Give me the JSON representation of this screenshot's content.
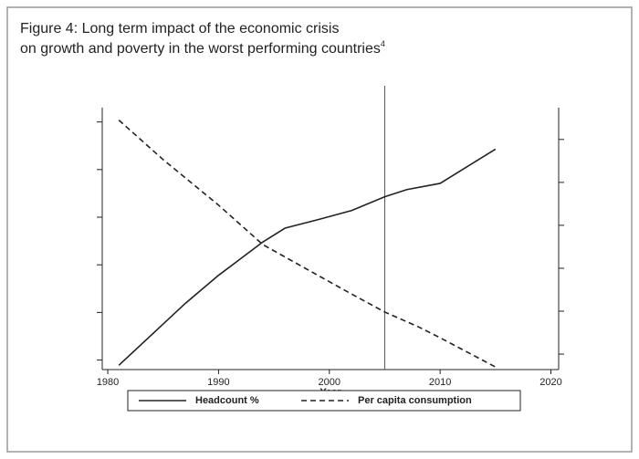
{
  "chart_data": {
    "type": "line",
    "title_lines": [
      "Figure 4: Long term impact of the economic crisis",
      "on growth and poverty in the worst performing countries"
    ],
    "footnote_mark": "4",
    "xlabel": "Year",
    "xlim": [
      1979.5,
      2020.7
    ],
    "xticks": [
      1980,
      1990,
      2000,
      2010,
      2020
    ],
    "ylim": [
      0.8,
      6.3
    ],
    "yticks": [
      1,
      2,
      3,
      4,
      5,
      6
    ],
    "y2lim": [
      0.64,
      6.74
    ],
    "y2ticks": [
      1,
      2,
      3,
      4,
      5,
      6
    ],
    "vline": 2005,
    "series": [
      {
        "name": "Headcount %",
        "color": "#222222",
        "dash": "solid",
        "x": [
          1981,
          1987,
          1990,
          1994,
          1996,
          1999,
          2002,
          2005,
          2007,
          2010,
          2015
        ],
        "values": [
          0.89,
          2.19,
          2.78,
          3.48,
          3.77,
          3.95,
          4.14,
          4.43,
          4.58,
          4.71,
          5.43
        ]
      },
      {
        "name": "Per capita consumption",
        "color": "#222222",
        "dash": "dashed",
        "axis": "y2",
        "x": [
          1981,
          1985,
          1990,
          1994,
          1999,
          2002,
          2005,
          2008,
          2010,
          2015
        ],
        "values": [
          6.45,
          5.53,
          4.47,
          3.55,
          2.83,
          2.4,
          1.98,
          1.64,
          1.38,
          0.7
        ]
      }
    ]
  }
}
